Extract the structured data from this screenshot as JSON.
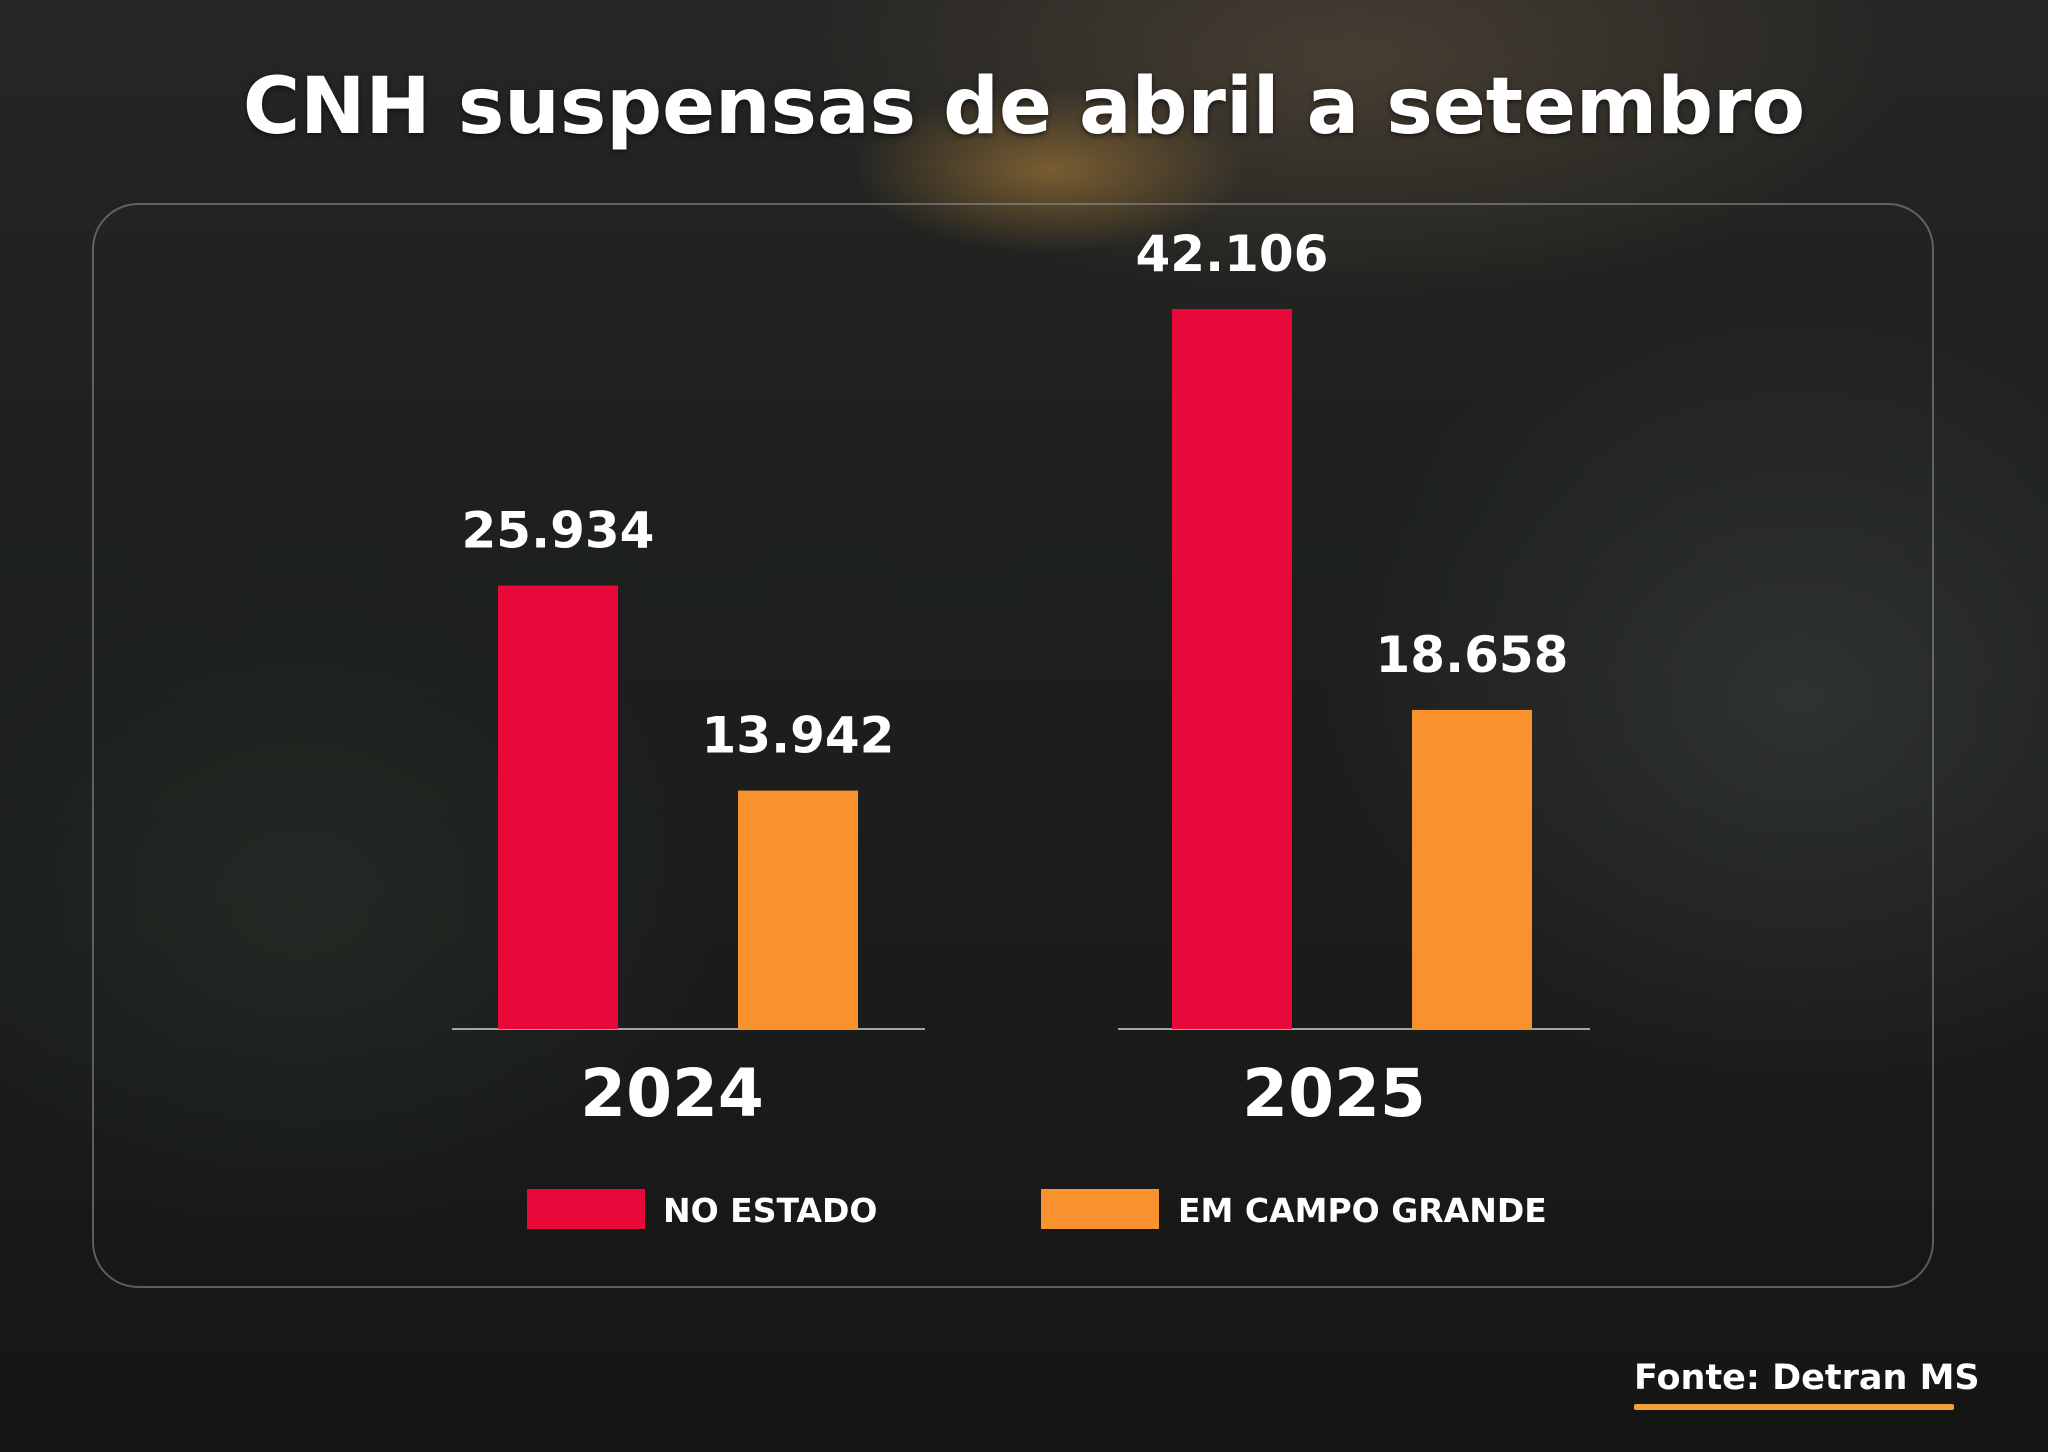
{
  "title": "CNH suspensas de abril a setembro",
  "source": "Fonte: Detran MS",
  "colors": {
    "estado": "#e8083a",
    "campo_grande": "#f7922e",
    "source_underline": "#f7a035"
  },
  "chart_data": {
    "type": "bar",
    "title": "CNH suspensas de abril a setembro",
    "categories": [
      "2024",
      "2025"
    ],
    "series": [
      {
        "name": "NO ESTADO",
        "values": [
          25934,
          42106
        ],
        "labels": [
          "25.934",
          "42.106"
        ]
      },
      {
        "name": "EM CAMPO GRANDE",
        "values": [
          13942,
          18658
        ],
        "labels": [
          "13.942",
          "18.658"
        ]
      }
    ],
    "ylim": [
      0,
      42106
    ],
    "grid": false,
    "legend": "bottom",
    "xlabel": "",
    "ylabel": ""
  }
}
